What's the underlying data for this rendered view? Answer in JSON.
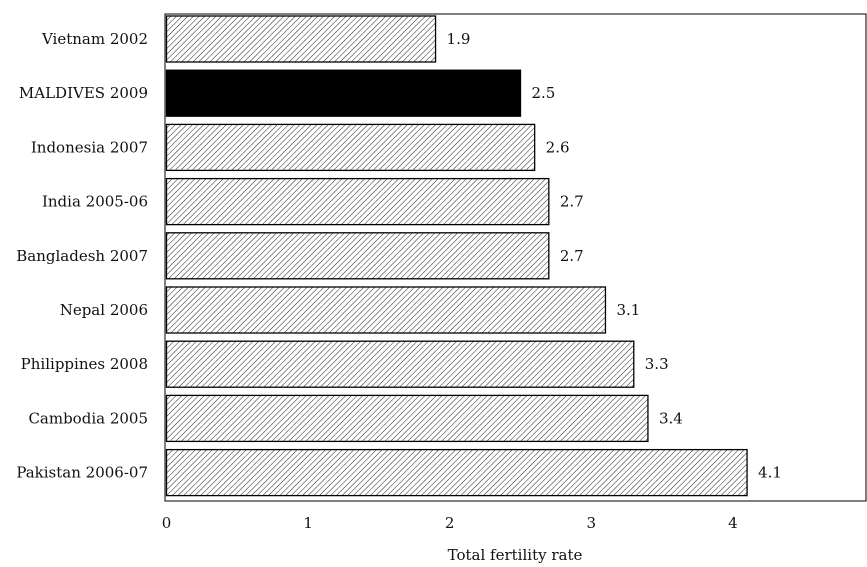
{
  "chart_data": {
    "type": "bar",
    "orientation": "horizontal",
    "categories": [
      "Vietnam 2002",
      "MALDIVES 2009",
      "Indonesia 2007",
      "India 2005-06",
      "Bangladesh 2007",
      "Nepal 2006",
      "Philippines 2008",
      "Cambodia 2005",
      "Pakistan 2006-07"
    ],
    "values": [
      1.9,
      2.5,
      2.6,
      2.7,
      2.7,
      3.1,
      3.3,
      3.4,
      4.1
    ],
    "value_labels": [
      "1.9",
      "2.5",
      "2.6",
      "2.7",
      "2.7",
      "3.1",
      "3.3",
      "3.4",
      "4.1"
    ],
    "highlight_index": 1,
    "xlabel": "Total fertility rate",
    "xlim": [
      0,
      4.9
    ],
    "xticks": [
      0,
      1,
      2,
      3,
      4
    ],
    "grid": false,
    "bar_fill": "hatched",
    "highlight_fill": "solid-black",
    "colors": {
      "bar": "#ffffff",
      "hatch": "#222222",
      "highlight": "#000000",
      "axis": "#000000"
    }
  }
}
